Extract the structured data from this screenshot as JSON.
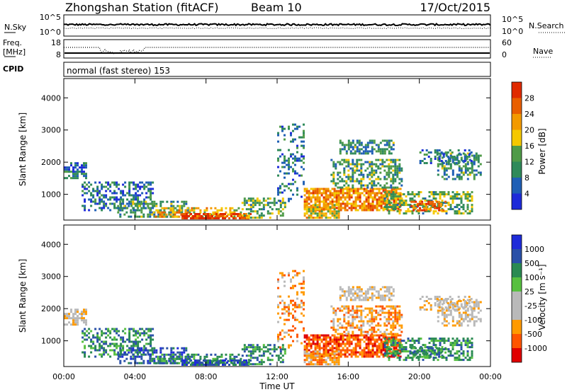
{
  "header": {
    "station": "Zhongshan Station (fitACF)",
    "beam": "Beam 10",
    "date": "17/Oct/2015"
  },
  "top_panels": {
    "nsky": {
      "left_label": "N.Sky",
      "right_label": "N.Search",
      "ticks_left": [
        "10^5",
        "10^0"
      ],
      "ticks_right": [
        "10^5",
        "10^0"
      ]
    },
    "freq": {
      "left_label_1": "Freq.",
      "left_label_2": "[MHz]",
      "right_label": "Nave",
      "ticks_left": [
        "18",
        "8"
      ],
      "ticks_right": [
        "60",
        "0"
      ]
    },
    "cpid": {
      "label": "CPID",
      "value": "normal (fast stereo) 153"
    }
  },
  "colors": {
    "power": [
      "#1e2bd9",
      "#1f5fb5",
      "#2f8a5a",
      "#4f9b48",
      "#f5c800",
      "#f39a00",
      "#e95f00",
      "#e02a00"
    ],
    "velocity": [
      "#e00000",
      "#ff5500",
      "#ff9a00",
      "#b9b9b9",
      "#b9b9b9",
      "#58c040",
      "#2a8a52",
      "#2a50a8",
      "#1e2bd9"
    ]
  },
  "chart_data": [
    {
      "type": "heatmap",
      "name": "power",
      "ylabel": "Slant Range [km]",
      "yticks": [
        "1000",
        "2000",
        "3000",
        "4000"
      ],
      "ylim": [
        200,
        4600
      ],
      "colorbar_label": "Power [dB]",
      "colorbar_ticks": [
        "4",
        "8",
        "12",
        "16",
        "20",
        "24",
        "28"
      ],
      "range": [
        0,
        30
      ]
    },
    {
      "type": "heatmap",
      "name": "velocity",
      "ylabel": "Slant Range [km]",
      "yticks": [
        "1000",
        "2000",
        "3000",
        "4000"
      ],
      "ylim": [
        200,
        4600
      ],
      "colorbar_label": "Velocity [m s⁻¹]",
      "colorbar_ticks": [
        "-1000",
        "-500",
        "-100",
        "-25",
        "25",
        "100",
        "500",
        "1000"
      ],
      "xlabel": "Time UT",
      "xticks": [
        "00:00",
        "04:00",
        "08:00",
        "12:00",
        "16:00",
        "20:00",
        "00:00"
      ],
      "xlim_hours": [
        0,
        24
      ]
    }
  ]
}
